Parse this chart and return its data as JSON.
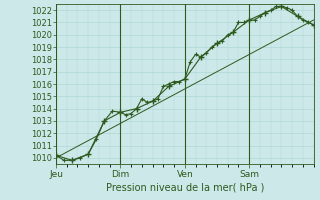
{
  "xlabel": "Pression niveau de la mer( hPa )",
  "ylim": [
    1009.5,
    1022.5
  ],
  "xlim": [
    0,
    96
  ],
  "yticks": [
    1010,
    1011,
    1012,
    1013,
    1014,
    1015,
    1016,
    1017,
    1018,
    1019,
    1020,
    1021,
    1022
  ],
  "xtick_positions": [
    0,
    24,
    48,
    72
  ],
  "xtick_labels": [
    "Jeu",
    "Dim",
    "Ven",
    "Sam"
  ],
  "bg_color": "#cce8e8",
  "grid_color": "#b0d8d8",
  "line_color": "#2d5a1e",
  "vlines_x": [
    0,
    24,
    48,
    72
  ],
  "line1_x": [
    0,
    3,
    6,
    9,
    12,
    15,
    18,
    21,
    24,
    26,
    28,
    30,
    32,
    34,
    36,
    38,
    40,
    42,
    44,
    46,
    48,
    50,
    52,
    54,
    56,
    58,
    60,
    62,
    64,
    66,
    68,
    70,
    72,
    74,
    76,
    78,
    80,
    82,
    84,
    86,
    88,
    90,
    92,
    94,
    96
  ],
  "line1_y": [
    1010.2,
    1009.8,
    1009.8,
    1010.0,
    1010.3,
    1011.5,
    1013.0,
    1013.8,
    1013.7,
    1013.5,
    1013.6,
    1014.0,
    1014.8,
    1014.5,
    1014.6,
    1014.8,
    1015.8,
    1016.0,
    1016.2,
    1016.2,
    1016.4,
    1017.8,
    1018.4,
    1018.2,
    1018.5,
    1019.0,
    1019.3,
    1019.5,
    1020.0,
    1020.2,
    1021.0,
    1021.0,
    1021.2,
    1021.2,
    1021.5,
    1021.8,
    1022.0,
    1022.3,
    1022.3,
    1022.2,
    1022.0,
    1021.5,
    1021.2,
    1021.0,
    1020.8
  ],
  "line2_x": [
    0,
    6,
    12,
    18,
    24,
    30,
    36,
    42,
    48,
    54,
    60,
    66,
    72,
    78,
    84,
    90,
    96
  ],
  "line2_y": [
    1010.2,
    1009.8,
    1010.3,
    1013.0,
    1013.7,
    1014.0,
    1014.6,
    1015.8,
    1016.4,
    1018.2,
    1019.3,
    1020.2,
    1021.2,
    1021.8,
    1022.3,
    1021.5,
    1020.8
  ],
  "line3_x": [
    0,
    96
  ],
  "line3_y": [
    1010.0,
    1021.2
  ]
}
